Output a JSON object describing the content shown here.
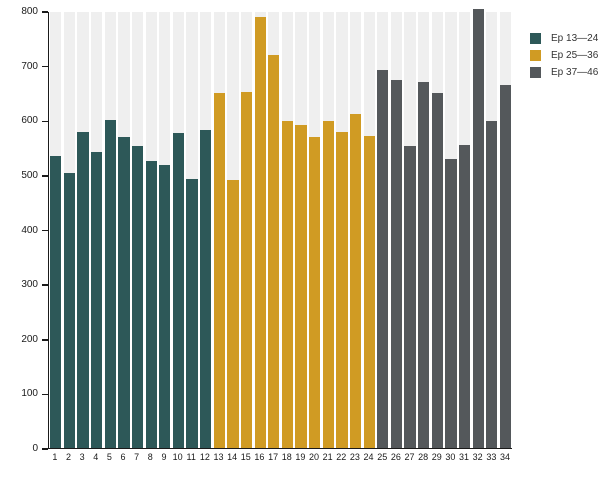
{
  "chart_data": {
    "type": "bar",
    "title": "",
    "xlabel": "",
    "ylabel": "",
    "categories": [
      "1",
      "2",
      "3",
      "4",
      "5",
      "6",
      "7",
      "8",
      "9",
      "10",
      "11",
      "12",
      "13",
      "14",
      "15",
      "16",
      "17",
      "18",
      "19",
      "20",
      "21",
      "22",
      "23",
      "24",
      "25",
      "26",
      "27",
      "28",
      "29",
      "30",
      "31",
      "32",
      "33",
      "34"
    ],
    "values": [
      535,
      504,
      580,
      543,
      602,
      571,
      555,
      527,
      519,
      578,
      494,
      584,
      651,
      492,
      653,
      791,
      721,
      600,
      592,
      571,
      600,
      580,
      613,
      572,
      694,
      675,
      554,
      671,
      652,
      530,
      556,
      806,
      600,
      666
    ],
    "group_index": [
      0,
      0,
      0,
      0,
      0,
      0,
      0,
      0,
      0,
      0,
      0,
      0,
      1,
      1,
      1,
      1,
      1,
      1,
      1,
      1,
      1,
      1,
      1,
      1,
      2,
      2,
      2,
      2,
      2,
      2,
      2,
      2,
      2,
      2
    ],
    "series": [
      {
        "label": "Ep 13—24",
        "color": "#2d5858",
        "bars": "1-12"
      },
      {
        "label": "Ep 25—36",
        "color": "#d09b23",
        "bars": "13-24"
      },
      {
        "label": "Ep 37—46",
        "color": "#54585b",
        "bars": "25-34"
      }
    ],
    "ylim": [
      0,
      800
    ],
    "yticks": [
      0,
      100,
      200,
      300,
      400,
      500,
      600,
      700,
      800
    ],
    "legend_position": "top-right",
    "grid": false,
    "background_stripe_color": "#efefef",
    "axis_color": "#1a1a1a"
  }
}
